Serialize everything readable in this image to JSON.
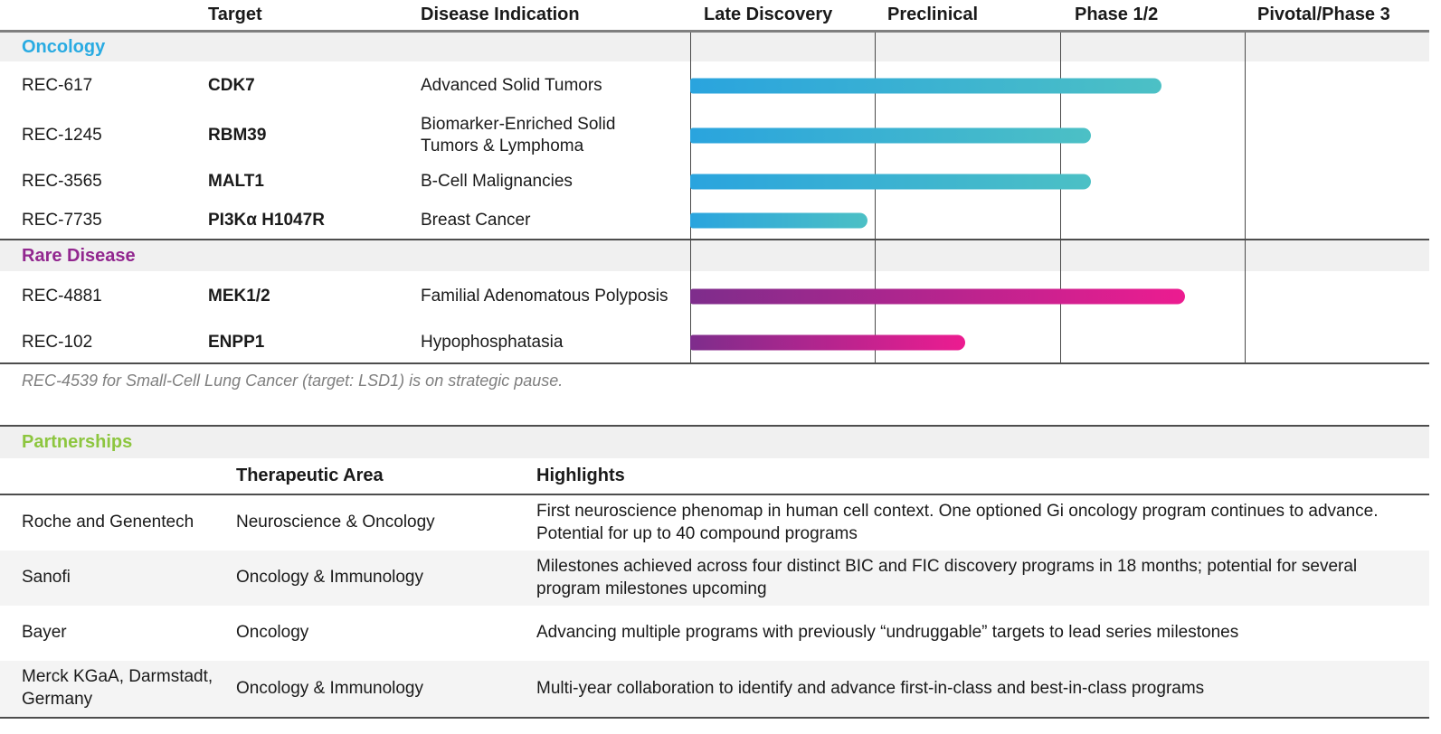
{
  "pipeline": {
    "columns": {
      "target": "Target",
      "indication": "Disease Indication"
    },
    "sections": [
      {
        "label": "Oncology",
        "color": "#29ABE2"
      },
      {
        "label": "Rare Disease",
        "color": "#92278F"
      }
    ],
    "footnote": "REC-4539 for Small-Cell Lung Cancer (target: LSD1) is on strategic pause."
  },
  "chart_data": {
    "type": "bar",
    "orientation": "horizontal",
    "x_stages": [
      "Late Discovery",
      "Preclinical",
      "Phase 1/2",
      "Pivotal/Phase 3"
    ],
    "x_range_stage_units": [
      0,
      4
    ],
    "gridlines": "vertical stage dividers",
    "bar_colors": {
      "Oncology": [
        "#2AA4DE",
        "#4CC0C5"
      ],
      "Rare Disease": [
        "#7E2D8C",
        "#EC1C90"
      ]
    },
    "bars": [
      {
        "group": "Oncology",
        "program": "REC-617",
        "target": "CDK7",
        "indication": "Advanced Solid Tumors",
        "progress_stage_units": 2.55
      },
      {
        "group": "Oncology",
        "program": "REC-1245",
        "target": "RBM39",
        "indication": "Biomarker-Enriched Solid Tumors & Lymphoma",
        "progress_stage_units": 2.17
      },
      {
        "group": "Oncology",
        "program": "REC-3565",
        "target": "MALT1",
        "indication": "B-Cell Malignancies",
        "progress_stage_units": 2.17
      },
      {
        "group": "Oncology",
        "program": "REC-7735",
        "target": "PI3Kα H1047R",
        "indication": "Breast Cancer",
        "progress_stage_units": 0.96
      },
      {
        "group": "Rare Disease",
        "program": "REC-4881",
        "target": "MEK1/2",
        "indication": "Familial Adenomatous Polyposis",
        "progress_stage_units": 2.68
      },
      {
        "group": "Rare Disease",
        "program": "REC-102",
        "target": "ENPP1",
        "indication": "Hypophosphatasia",
        "progress_stage_units": 1.49
      }
    ]
  },
  "partnerships": {
    "title": "Partnerships",
    "title_color": "#8DC63F",
    "columns": {
      "area": "Therapeutic Area",
      "highlights": "Highlights"
    },
    "rows": [
      {
        "partner": "Roche and Genentech",
        "area": "Neuroscience & Oncology",
        "highlights": "First neuroscience phenomap in human cell context. One optioned Gi oncology program continues to advance. Potential for up to 40 compound programs"
      },
      {
        "partner": "Sanofi",
        "area": "Oncology & Immunology",
        "highlights": "Milestones achieved across four distinct BIC and FIC discovery programs in 18 months; potential for several program milestones upcoming"
      },
      {
        "partner": "Bayer",
        "area": "Oncology",
        "highlights": "Advancing multiple programs with previously “undruggable” targets to lead series milestones"
      },
      {
        "partner": "Merck KGaA, Darmstadt, Germany",
        "area": "Oncology & Immunology",
        "highlights": "Multi-year collaboration to identify and advance first-in-class and best-in-class programs"
      }
    ]
  }
}
